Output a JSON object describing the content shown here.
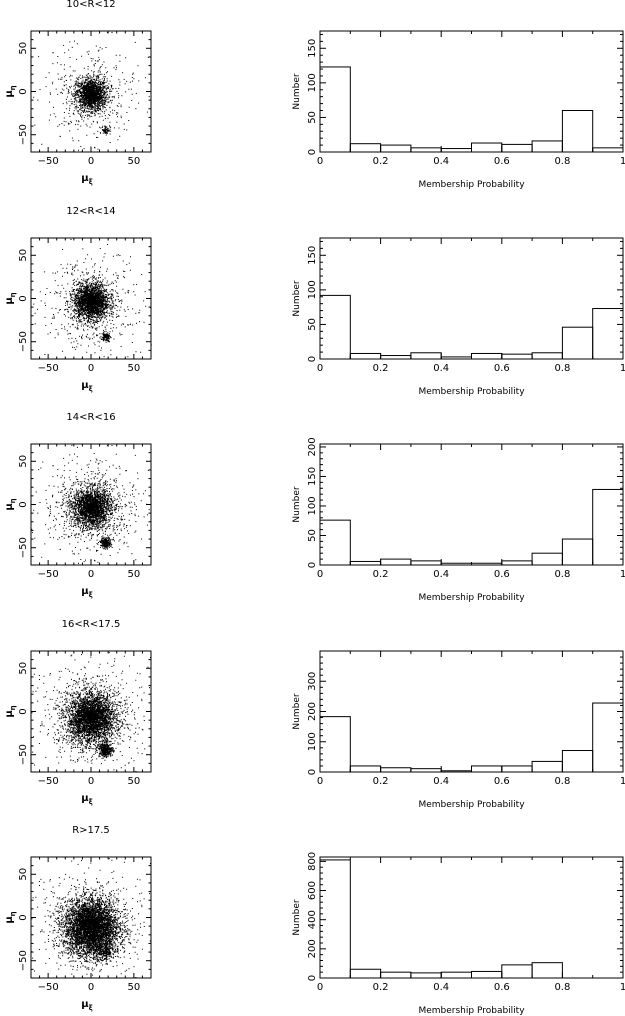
{
  "chart_data": [
    {
      "type": "scatter",
      "title": "10<R<12",
      "xlabel": "μ_ξ",
      "ylabel": "μ_η",
      "xlim": [
        -70,
        70
      ],
      "ylim": [
        -70,
        70
      ],
      "xticks": [
        -50,
        0,
        50
      ],
      "yticks": [
        -50,
        0,
        50
      ],
      "clusters": [
        {
          "center": [
            0,
            -3
          ],
          "spread": 9,
          "count": 1400
        },
        {
          "center": [
            17,
            -44
          ],
          "spread": 2.5,
          "count": 80
        }
      ],
      "field_count": 700
    },
    {
      "type": "bar",
      "xlabel": "Membership Probability",
      "ylabel": "Number",
      "xlim": [
        0,
        1
      ],
      "ylim": [
        0,
        175
      ],
      "xticks": [
        0,
        0.2,
        0.4,
        0.6,
        0.8,
        1
      ],
      "yticks": [
        0,
        50,
        100,
        150
      ],
      "bin_edges": [
        0,
        0.1,
        0.2,
        0.3,
        0.4,
        0.5,
        0.6,
        0.7,
        0.8,
        0.9,
        1.0
      ],
      "values": [
        123,
        12,
        10,
        6,
        5,
        13,
        11,
        16,
        60,
        6
      ]
    },
    {
      "type": "scatter",
      "title": "12<R<14",
      "xlabel": "μ_ξ",
      "ylabel": "μ_η",
      "xlim": [
        -70,
        70
      ],
      "ylim": [
        -70,
        70
      ],
      "xticks": [
        -50,
        0,
        50
      ],
      "yticks": [
        -50,
        0,
        50
      ],
      "clusters": [
        {
          "center": [
            0,
            -3
          ],
          "spread": 10,
          "count": 1900
        },
        {
          "center": [
            17,
            -44
          ],
          "spread": 2.5,
          "count": 120
        }
      ],
      "field_count": 900
    },
    {
      "type": "bar",
      "xlabel": "Membership Probability",
      "ylabel": "Number",
      "xlim": [
        0,
        1
      ],
      "ylim": [
        0,
        175
      ],
      "xticks": [
        0,
        0.2,
        0.4,
        0.6,
        0.8,
        1
      ],
      "yticks": [
        0,
        50,
        100,
        150
      ],
      "bin_edges": [
        0,
        0.1,
        0.2,
        0.3,
        0.4,
        0.5,
        0.6,
        0.7,
        0.8,
        0.9,
        1.0
      ],
      "values": [
        92,
        8,
        5,
        9,
        3,
        8,
        7,
        9,
        46,
        73
      ]
    },
    {
      "type": "scatter",
      "title": "14<R<16",
      "xlabel": "μ_ξ",
      "ylabel": "μ_η",
      "xlim": [
        -70,
        70
      ],
      "ylim": [
        -70,
        70
      ],
      "xticks": [
        -50,
        0,
        50
      ],
      "yticks": [
        -50,
        0,
        50
      ],
      "clusters": [
        {
          "center": [
            0,
            -3
          ],
          "spread": 11,
          "count": 1700
        },
        {
          "center": [
            17,
            -44
          ],
          "spread": 3,
          "count": 220
        }
      ],
      "field_count": 1300
    },
    {
      "type": "bar",
      "xlabel": "Membership Probability",
      "ylabel": "Number",
      "xlim": [
        0,
        1
      ],
      "ylim": [
        0,
        205
      ],
      "xticks": [
        0,
        0.2,
        0.4,
        0.6,
        0.8,
        1
      ],
      "yticks": [
        0,
        50,
        100,
        150,
        200
      ],
      "bin_edges": [
        0,
        0.1,
        0.2,
        0.3,
        0.4,
        0.5,
        0.6,
        0.7,
        0.8,
        0.9,
        1.0
      ],
      "values": [
        76,
        6,
        10,
        7,
        3,
        3,
        7,
        20,
        44,
        128
      ]
    },
    {
      "type": "scatter",
      "title": "16<R<17.5",
      "xlabel": "μ_ξ",
      "ylabel": "μ_η",
      "xlim": [
        -70,
        70
      ],
      "ylim": [
        -70,
        70
      ],
      "xticks": [
        -50,
        0,
        50
      ],
      "yticks": [
        -50,
        0,
        50
      ],
      "clusters": [
        {
          "center": [
            0,
            -8
          ],
          "spread": 14,
          "count": 2600
        },
        {
          "center": [
            17,
            -44
          ],
          "spread": 4,
          "count": 350
        }
      ],
      "field_count": 1500
    },
    {
      "type": "bar",
      "xlabel": "Membership Probability",
      "ylabel": "Number",
      "xlim": [
        0,
        1
      ],
      "ylim": [
        0,
        400
      ],
      "xticks": [
        0,
        0.2,
        0.4,
        0.6,
        0.8,
        1
      ],
      "yticks": [
        0,
        100,
        200,
        300
      ],
      "bin_edges": [
        0,
        0.1,
        0.2,
        0.3,
        0.4,
        0.5,
        0.6,
        0.7,
        0.8,
        0.9,
        1.0
      ],
      "values": [
        183,
        20,
        14,
        11,
        4,
        20,
        20,
        35,
        71,
        228
      ]
    },
    {
      "type": "scatter",
      "title": "R>17.5",
      "xlabel": "μ_ξ",
      "ylabel": "μ_η",
      "xlim": [
        -70,
        70
      ],
      "ylim": [
        -70,
        70
      ],
      "xticks": [
        -50,
        0,
        50
      ],
      "yticks": [
        -50,
        0,
        50
      ],
      "clusters": [
        {
          "center": [
            0,
            -12
          ],
          "spread": 16,
          "count": 4200
        },
        {
          "center": [
            15,
            -38
          ],
          "spread": 6,
          "count": 250
        }
      ],
      "field_count": 1200
    },
    {
      "type": "bar",
      "xlabel": "Membership Probability",
      "ylabel": "Number",
      "xlim": [
        0,
        1
      ],
      "ylim": [
        0,
        830
      ],
      "xticks": [
        0,
        0.2,
        0.4,
        0.6,
        0.8,
        1
      ],
      "yticks": [
        0,
        200,
        400,
        600,
        800
      ],
      "bin_edges": [
        0,
        0.1,
        0.2,
        0.3,
        0.4,
        0.5,
        0.6,
        0.7,
        0.8,
        0.9,
        1.0
      ],
      "values": [
        810,
        60,
        40,
        35,
        40,
        45,
        90,
        105,
        0,
        0
      ]
    }
  ]
}
